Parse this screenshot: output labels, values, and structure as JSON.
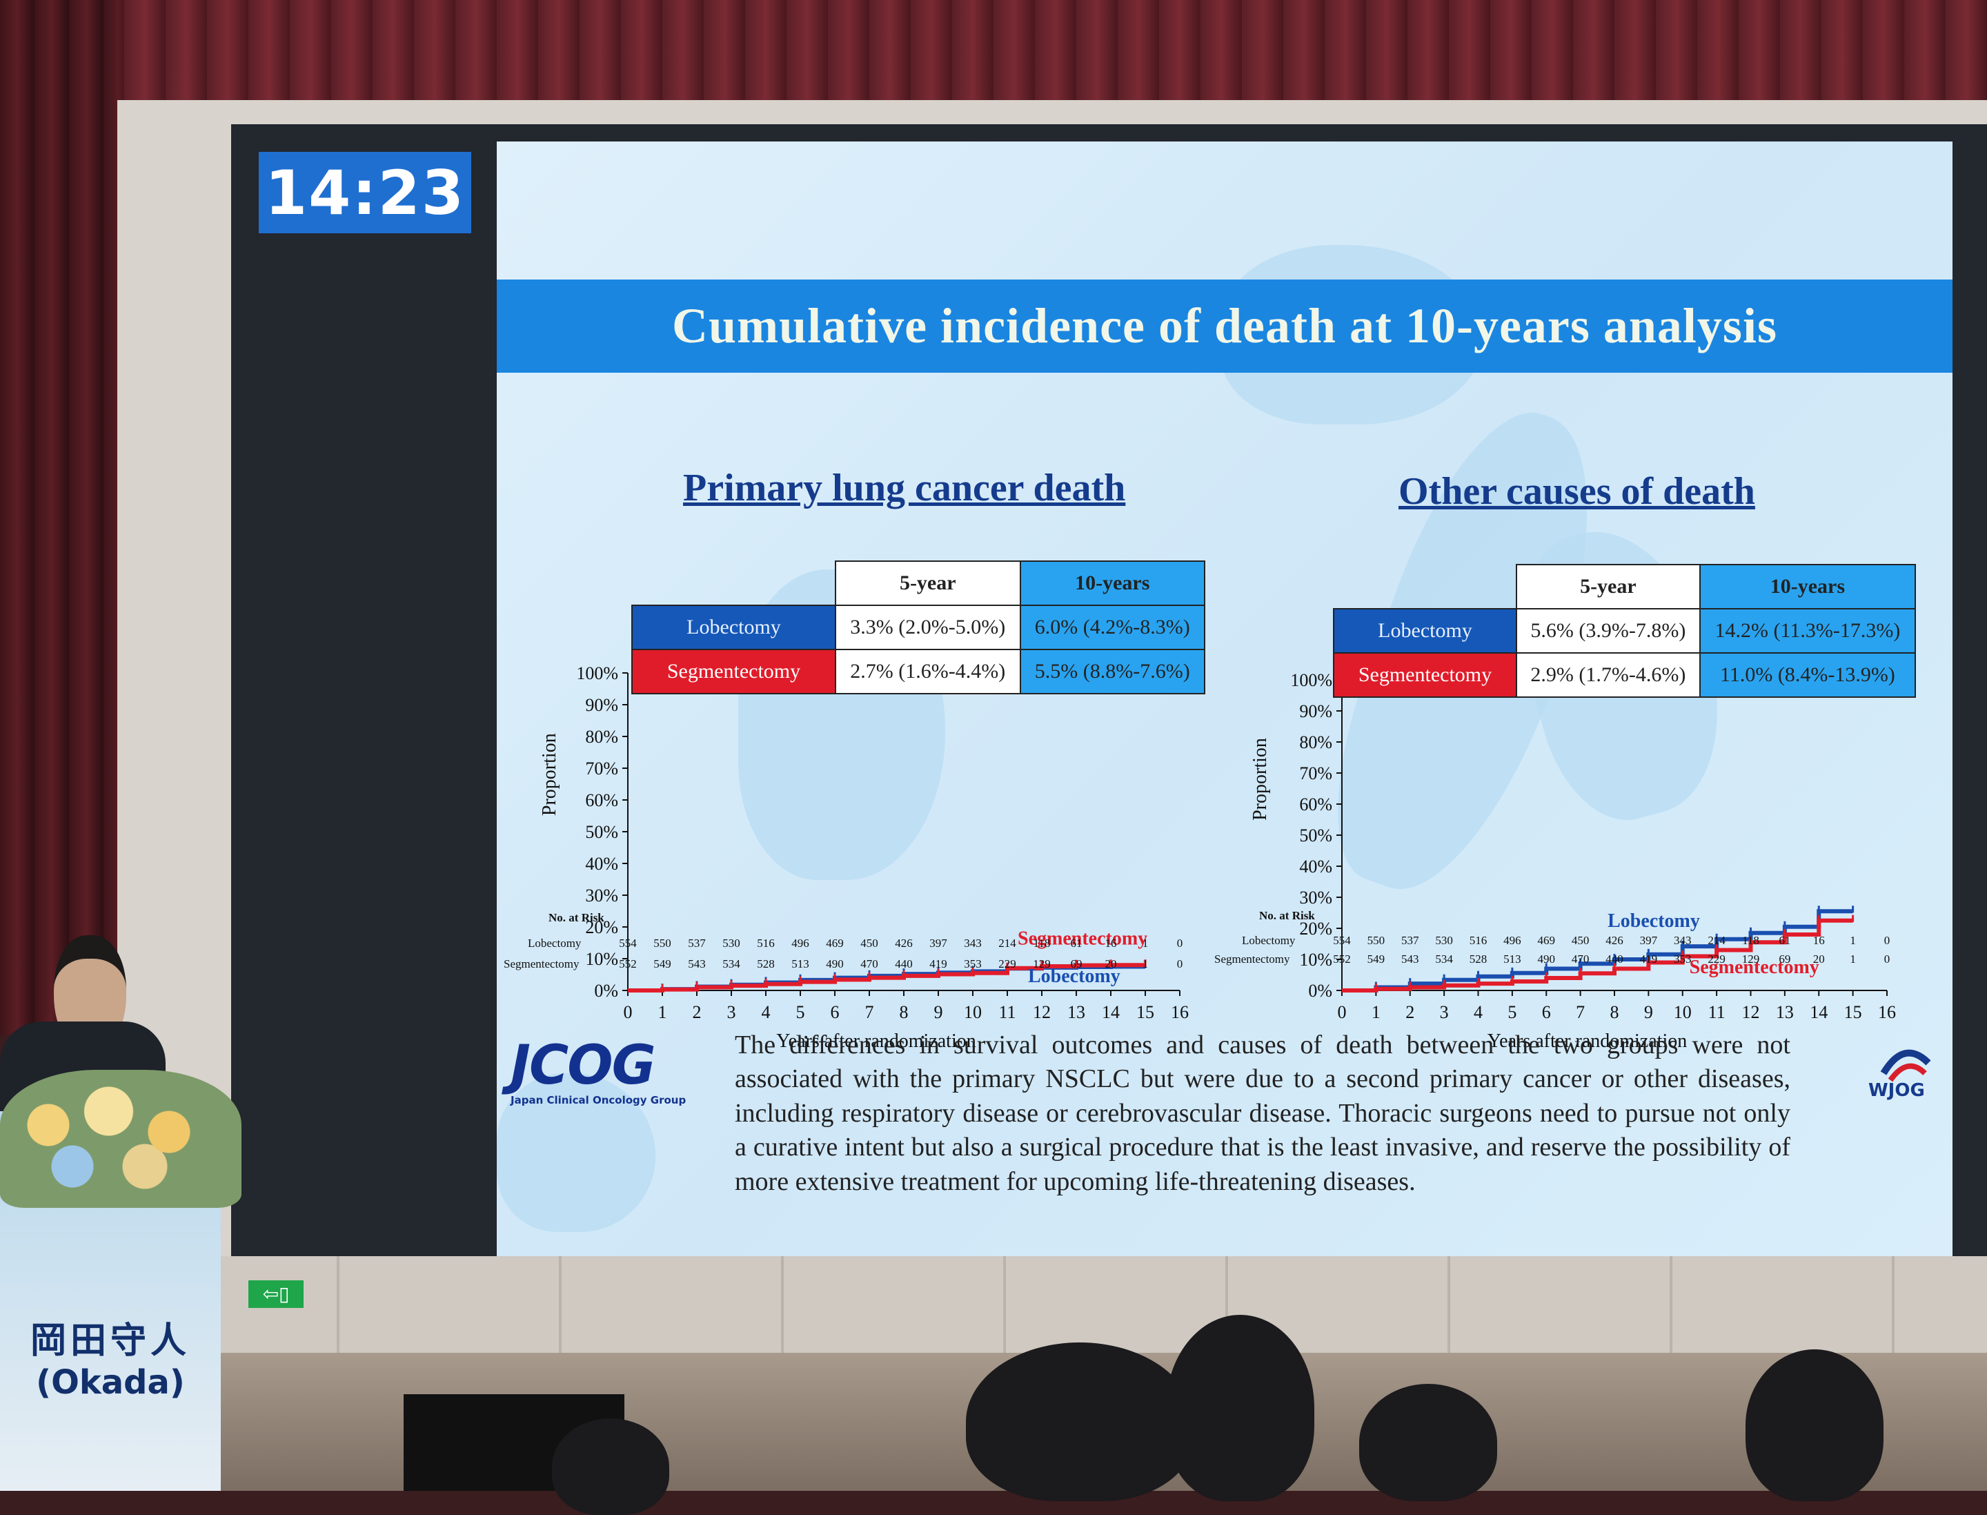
{
  "clock": {
    "time": "14:23"
  },
  "slide": {
    "title": "Cumulative incidence of death at 10-years analysis",
    "left_chart_title": "Primary lung cancer death",
    "right_chart_title": "Other causes of death",
    "table_left": {
      "col_5": "5-year",
      "col_10": "10-years",
      "lob_label": "Lobectomy",
      "lob_5": "3.3% (2.0%-5.0%)",
      "lob_10": "6.0% (4.2%-8.3%)",
      "seg_label": "Segmentectomy",
      "seg_5": "2.7% (1.6%-4.4%)",
      "seg_10": "5.5% (8.8%-7.6%)"
    },
    "table_right": {
      "col_5": "5-year",
      "col_10": "10-years",
      "lob_label": "Lobectomy",
      "lob_5": "5.6% (3.9%-7.8%)",
      "lob_10": "14.2% (11.3%-17.3%)",
      "seg_label": "Segmentectomy",
      "seg_5": "2.9% (1.7%-4.6%)",
      "seg_10": "11.0% (8.4%-13.9%)"
    },
    "risk_header": "No. at Risk",
    "risk_lob_label": "Lobectomy",
    "risk_seg_label": "Segmentectomy",
    "risk_lob": [
      "554",
      "550",
      "537",
      "530",
      "516",
      "496",
      "469",
      "450",
      "426",
      "397",
      "343",
      "214",
      "118",
      "61",
      "16",
      "1",
      "0"
    ],
    "risk_seg": [
      "552",
      "549",
      "543",
      "534",
      "528",
      "513",
      "490",
      "470",
      "440",
      "419",
      "353",
      "229",
      "129",
      "69",
      "20",
      "1",
      "0"
    ],
    "jcog_logo": "JCOG",
    "jcog_sub": "Japan Clinical Oncology Group",
    "wjog_logo": "WJOG",
    "summary": "The differences in survival outcomes and causes of death between the two groups were not associated with the primary NSCLC but were due to a second primary cancer or other diseases, including respiratory disease or cerebrovascular disease. Thoracic surgeons need to pursue not only a curative intent but also a surgical procedure that is the least invasive, and reserve the possibility of more extensive treatment for upcoming life-threatening diseases."
  },
  "podium": {
    "name_cn": "岡田守人",
    "name_en": "(Okada)"
  },
  "colors": {
    "lobectomy": "#1a4fb0",
    "segmentectomy": "#e21d2b",
    "title_bar": "#1a86e0"
  },
  "chart_data": [
    {
      "type": "line",
      "title": "Primary lung cancer death",
      "xlabel": "Years after randomization",
      "ylabel": "Proportion",
      "xlim": [
        0,
        16
      ],
      "ylim": [
        0,
        100
      ],
      "xticks": [
        "0",
        "1",
        "2",
        "3",
        "4",
        "5",
        "6",
        "7",
        "8",
        "9",
        "10",
        "11",
        "12",
        "13",
        "14",
        "15",
        "16"
      ],
      "yticks": [
        "0%",
        "10%",
        "20%",
        "30%",
        "40%",
        "50%",
        "60%",
        "70%",
        "80%",
        "90%",
        "100%"
      ],
      "series": [
        {
          "name": "Lobectomy",
          "color": "#1a4fb0",
          "x": [
            0,
            1,
            2,
            3,
            4,
            5,
            6,
            7,
            8,
            9,
            10,
            11,
            12,
            13,
            14,
            15
          ],
          "y": [
            0,
            0.4,
            1.2,
            1.8,
            2.5,
            3.3,
            4.0,
            4.6,
            5.2,
            5.6,
            6.0,
            6.9,
            7.2,
            7.4,
            7.5,
            7.5
          ]
        },
        {
          "name": "Segmentectomy",
          "color": "#e21d2b",
          "x": [
            0,
            1,
            2,
            3,
            4,
            5,
            6,
            7,
            8,
            9,
            10,
            11,
            12,
            13,
            14,
            15
          ],
          "y": [
            0,
            0.3,
            1.0,
            1.5,
            2.0,
            2.7,
            3.4,
            4.0,
            4.6,
            5.1,
            5.5,
            7.0,
            7.6,
            7.9,
            8.0,
            8.0
          ]
        }
      ],
      "annotations": [
        "Segmentectomy",
        "Lobectomy"
      ]
    },
    {
      "type": "line",
      "title": "Other causes of death",
      "xlabel": "Years after randomization",
      "ylabel": "Proportion",
      "xlim": [
        0,
        16
      ],
      "ylim": [
        0,
        100
      ],
      "xticks": [
        "0",
        "1",
        "2",
        "3",
        "4",
        "5",
        "6",
        "7",
        "8",
        "9",
        "10",
        "11",
        "12",
        "13",
        "14",
        "15",
        "16"
      ],
      "yticks": [
        "0%",
        "10%",
        "20%",
        "30%",
        "40%",
        "50%",
        "60%",
        "70%",
        "80%",
        "90%",
        "100%"
      ],
      "series": [
        {
          "name": "Lobectomy",
          "color": "#1a4fb0",
          "x": [
            0,
            1,
            2,
            3,
            4,
            5,
            6,
            7,
            8,
            9,
            10,
            11,
            12,
            13,
            14,
            15
          ],
          "y": [
            0,
            1.0,
            2.2,
            3.4,
            4.5,
            5.6,
            7.0,
            8.6,
            10.0,
            11.6,
            14.2,
            16.5,
            18.5,
            20.5,
            25.5,
            25.5
          ]
        },
        {
          "name": "Segmentectomy",
          "color": "#e21d2b",
          "x": [
            0,
            1,
            2,
            3,
            4,
            5,
            6,
            7,
            8,
            9,
            10,
            11,
            12,
            13,
            14,
            15
          ],
          "y": [
            0,
            0.5,
            1.0,
            1.6,
            2.2,
            2.9,
            4.0,
            5.5,
            7.0,
            9.0,
            11.0,
            13.0,
            15.5,
            18.0,
            22.5,
            22.5
          ]
        }
      ],
      "annotations": [
        "Lobectomy",
        "Segmentectomy"
      ]
    }
  ]
}
